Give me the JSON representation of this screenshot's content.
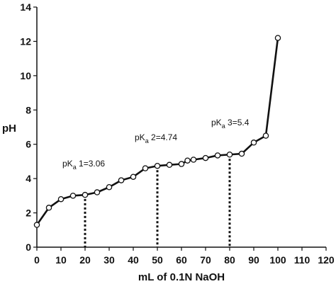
{
  "chart_data": {
    "type": "line",
    "title": "",
    "xlabel": "mL of 0.1N NaOH",
    "ylabel": "pH",
    "xlim": [
      0,
      120
    ],
    "ylim": [
      0,
      14
    ],
    "xticks": [
      0,
      10,
      20,
      30,
      40,
      50,
      60,
      70,
      80,
      90,
      100,
      110,
      120
    ],
    "yticks": [
      0,
      2,
      4,
      6,
      8,
      10,
      12,
      14
    ],
    "grid": false,
    "legend": "none",
    "series": [
      {
        "x": [
          0,
          5,
          10,
          15,
          20,
          25,
          30,
          35,
          40,
          45,
          50,
          55,
          60,
          62.5,
          65,
          70,
          75,
          80,
          85,
          90,
          95,
          100
        ],
        "y": [
          1.3,
          2.3,
          2.8,
          3.0,
          3.05,
          3.2,
          3.5,
          3.9,
          4.1,
          4.6,
          4.74,
          4.8,
          4.85,
          5.05,
          5.1,
          5.2,
          5.35,
          5.4,
          5.45,
          6.1,
          6.5,
          12.2
        ],
        "color": "#111111",
        "marker": "open-circle"
      }
    ],
    "annotations": [
      {
        "prefix": "pK",
        "sub": "a",
        "suffix": " 1=3.06",
        "x": 20,
        "y": 3.06
      },
      {
        "prefix": "pK",
        "sub": "a",
        "suffix": " 2=4.74",
        "x": 50,
        "y": 4.74
      },
      {
        "prefix": "pK",
        "sub": "a",
        "suffix": " 3=5.4",
        "x": 80,
        "y": 5.4
      }
    ]
  }
}
